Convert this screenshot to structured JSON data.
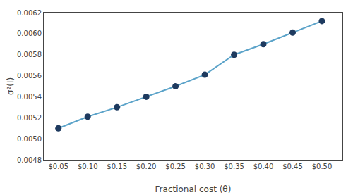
{
  "chart_data": {
    "type": "line",
    "xlabel": "Fractional cost (θ)",
    "ylabel": "σ²(I)",
    "x": [
      0.05,
      0.1,
      0.15,
      0.2,
      0.25,
      0.3,
      0.35,
      0.4,
      0.45,
      0.5
    ],
    "series": [
      {
        "type": "line",
        "color": "#5ba3c9",
        "values": [
          0.0051,
          0.00521,
          0.0053,
          0.0054,
          0.0055,
          0.00561,
          0.0058,
          0.0059,
          0.00601,
          0.00612
        ]
      },
      {
        "type": "scatter",
        "color": "#1e3a5f",
        "marker": "circle",
        "values": [
          0.0051,
          0.00521,
          0.0053,
          0.0054,
          0.0055,
          0.00561,
          0.0058,
          0.0059,
          0.00601,
          0.00612
        ]
      }
    ],
    "xlim": [
      0.025,
      0.535
    ],
    "xticks": [
      {
        "value": 0.05,
        "label": "$0.05"
      },
      {
        "value": 0.1,
        "label": "$0.10"
      },
      {
        "value": 0.15,
        "label": "$0.15"
      },
      {
        "value": 0.2,
        "label": "$0.20"
      },
      {
        "value": 0.25,
        "label": "$0.25"
      },
      {
        "value": 0.3,
        "label": "$0.30"
      },
      {
        "value": 0.35,
        "label": "$0.35"
      },
      {
        "value": 0.4,
        "label": "$0.40"
      },
      {
        "value": 0.45,
        "label": "$0.45"
      },
      {
        "value": 0.5,
        "label": "$0.50"
      }
    ],
    "ylim": [
      0.0048,
      0.0062
    ],
    "yticks": [
      0.0048,
      {
        "value": 0.005,
        "label": "0.0050"
      },
      0.0052,
      0.0054,
      0.0056,
      0.0058,
      {
        "value": 0.006,
        "label": "0.0060"
      },
      0.0062
    ],
    "grid": false
  }
}
